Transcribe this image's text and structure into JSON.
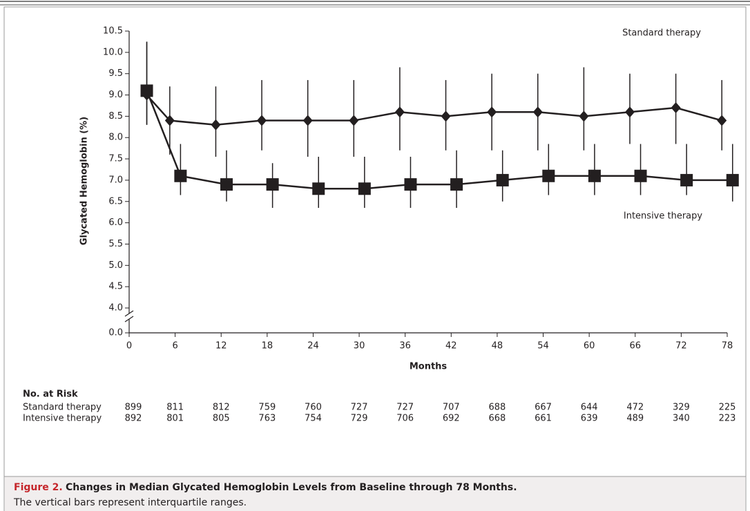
{
  "chart_data": {
    "type": "line",
    "y_label": "Glycated Hemoglobin (%)",
    "x_label": "Months",
    "xlim": [
      0,
      78
    ],
    "xticks": [
      0,
      6,
      12,
      18,
      24,
      30,
      36,
      42,
      48,
      54,
      60,
      66,
      72,
      78
    ],
    "ylim": [
      0,
      10.5
    ],
    "axis_break": [
      0,
      4
    ],
    "yticks": [
      {
        "value": 0,
        "label": "0.0"
      },
      {
        "value": 4,
        "label": "4.0"
      },
      4.5,
      {
        "value": 5,
        "label": "5.0"
      },
      5.5,
      {
        "value": 6,
        "label": "6.0"
      },
      6.5,
      {
        "value": 7,
        "label": "7.0"
      },
      7.5,
      {
        "value": 8,
        "label": "8.0"
      },
      8.5,
      {
        "value": 9,
        "label": "9.0"
      },
      9.5,
      {
        "value": 10,
        "label": "10.0"
      },
      10.5
    ],
    "series": [
      {
        "name": "Standard therapy",
        "color": "#231f20",
        "marker": "diamond",
        "x": [
          2.3,
          5.3,
          11.3,
          17.3,
          23.3,
          29.3,
          35.3,
          41.3,
          47.3,
          53.3,
          59.3,
          65.3,
          71.3,
          77.3
        ],
        "values": [
          9.0,
          8.4,
          8.3,
          8.4,
          8.4,
          8.4,
          8.6,
          8.5,
          8.6,
          8.6,
          8.5,
          8.6,
          8.7,
          8.4
        ],
        "low": [
          8.3,
          7.6,
          7.55,
          7.7,
          7.55,
          7.55,
          7.7,
          7.7,
          7.7,
          7.7,
          7.7,
          7.85,
          7.85,
          7.7
        ],
        "high": [
          10.25,
          9.2,
          9.2,
          9.35,
          9.35,
          9.35,
          9.65,
          9.35,
          9.5,
          9.5,
          9.65,
          9.5,
          9.5,
          9.35
        ]
      },
      {
        "name": "Intensive therapy",
        "color": "#231f20",
        "marker": "square",
        "x": [
          2.3,
          6.7,
          12.7,
          18.7,
          24.7,
          30.7,
          36.7,
          42.7,
          48.7,
          54.7,
          60.7,
          66.7,
          72.7,
          78.7
        ],
        "values": [
          9.1,
          7.1,
          6.9,
          6.9,
          6.8,
          6.8,
          6.9,
          6.9,
          7.0,
          7.1,
          7.1,
          7.1,
          7.0,
          7.0
        ],
        "low": [
          8.3,
          6.65,
          6.5,
          6.35,
          6.35,
          6.35,
          6.35,
          6.35,
          6.5,
          6.65,
          6.65,
          6.65,
          6.65,
          6.5
        ],
        "high": [
          10.25,
          7.85,
          7.7,
          7.4,
          7.55,
          7.55,
          7.55,
          7.7,
          7.7,
          7.85,
          7.85,
          7.85,
          7.85,
          7.85
        ]
      }
    ],
    "at_risk": {
      "title": "No. at Risk",
      "rows": [
        {
          "label": "Standard therapy",
          "values": [
            899,
            811,
            812,
            759,
            760,
            727,
            727,
            707,
            688,
            667,
            644,
            472,
            329,
            225
          ]
        },
        {
          "label": "Intensive therapy",
          "values": [
            892,
            801,
            805,
            763,
            754,
            729,
            706,
            692,
            668,
            661,
            639,
            489,
            340,
            223
          ]
        }
      ]
    }
  },
  "caption": {
    "label": "Figure 2.",
    "title": "Changes in Median Glycated Hemoglobin Levels from Baseline through 78 Months.",
    "note": "The vertical bars represent interquartile ranges."
  }
}
